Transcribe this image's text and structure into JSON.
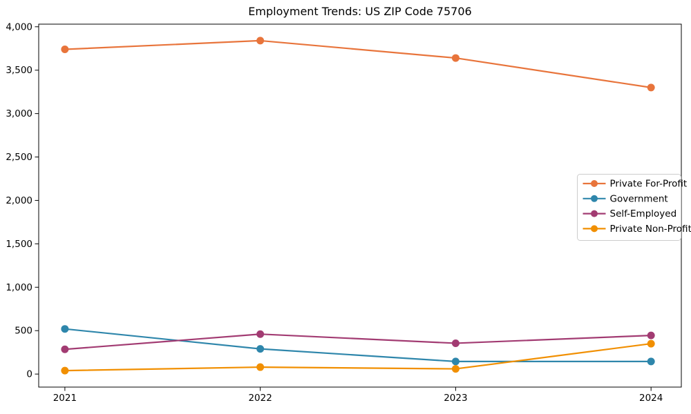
{
  "figure": {
    "background": "#ffffff",
    "spine_color": "#000000"
  },
  "chart_data": {
    "type": "line",
    "title": "Employment Trends: US ZIP Code 75706",
    "xlabel": "",
    "ylabel": "",
    "x": [
      2021,
      2022,
      2023,
      2024
    ],
    "x_tick_labels": [
      "2021",
      "2022",
      "2023",
      "2024"
    ],
    "y_ticks": [
      0,
      500,
      1000,
      1500,
      2000,
      2500,
      3000,
      3500,
      4000
    ],
    "y_tick_labels": [
      "0",
      "500",
      "1,000",
      "1,500",
      "2,000",
      "2,500",
      "3,000",
      "3,500",
      "4,000"
    ],
    "xlim": [
      2020.866,
      2024.155
    ],
    "ylim": [
      -150,
      4030
    ],
    "grid": false,
    "marker": "o",
    "series": [
      {
        "name": "Private For-Profit",
        "color": "#E8743B",
        "values": [
          3740,
          3840,
          3640,
          3300
        ]
      },
      {
        "name": "Government",
        "color": "#2E86AB",
        "values": [
          520,
          290,
          145,
          145
        ]
      },
      {
        "name": "Self-Employed",
        "color": "#A23B72",
        "values": [
          285,
          460,
          355,
          445
        ]
      },
      {
        "name": "Private Non-Profit",
        "color": "#F18F01",
        "values": [
          40,
          80,
          60,
          350
        ]
      }
    ],
    "legend": {
      "position": "center-right",
      "entries": [
        "Private For-Profit",
        "Government",
        "Self-Employed",
        "Private Non-Profit"
      ]
    }
  }
}
